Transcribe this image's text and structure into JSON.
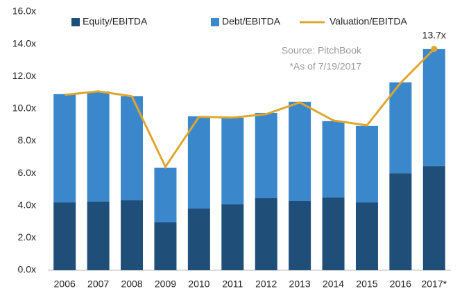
{
  "chart_data": {
    "type": "stacked_bar_line",
    "categories": [
      "2006",
      "2007",
      "2008",
      "2009",
      "2010",
      "2011",
      "2012",
      "2013",
      "2014",
      "2015",
      "2016",
      "2017*"
    ],
    "series": [
      {
        "name": "Equity/EBITDA",
        "color": "#1f4e79",
        "kind": "bar",
        "values": [
          4.2,
          4.25,
          4.33,
          2.96,
          3.82,
          4.08,
          4.46,
          4.29,
          4.5,
          4.2,
          6.0,
          6.44
        ]
      },
      {
        "name": "Debt/EBITDA",
        "color": "#3a87cb",
        "kind": "bar",
        "values": [
          6.7,
          6.82,
          6.44,
          3.39,
          5.71,
          5.36,
          5.28,
          6.14,
          4.73,
          4.73,
          5.63,
          7.25
        ]
      },
      {
        "name": "Valuation/EBITDA",
        "color": "#dfa62e",
        "kind": "line",
        "values": [
          10.86,
          11.07,
          10.77,
          6.4,
          9.5,
          9.45,
          9.66,
          10.39,
          9.27,
          8.97,
          11.59,
          13.7
        ],
        "value_labels": [
          null,
          null,
          null,
          null,
          null,
          null,
          null,
          null,
          null,
          null,
          null,
          "13.7x"
        ]
      }
    ],
    "ylim": [
      0,
      16
    ],
    "yticks": [
      {
        "value": 0,
        "label": "0.0x"
      },
      {
        "value": 2,
        "label": "2.0x"
      },
      {
        "value": 4,
        "label": "4.0x"
      },
      {
        "value": 6,
        "label": "6.0x"
      },
      {
        "value": 8,
        "label": "8.0x"
      },
      {
        "value": 10,
        "label": "10.0x"
      },
      {
        "value": 12,
        "label": "12.0x"
      },
      {
        "value": 14,
        "label": "14.0x"
      },
      {
        "value": 16,
        "label": "16.0x"
      }
    ],
    "annotations": [
      "Source: PitchBook",
      "*As of 7/19/2017"
    ],
    "legend": "top"
  }
}
